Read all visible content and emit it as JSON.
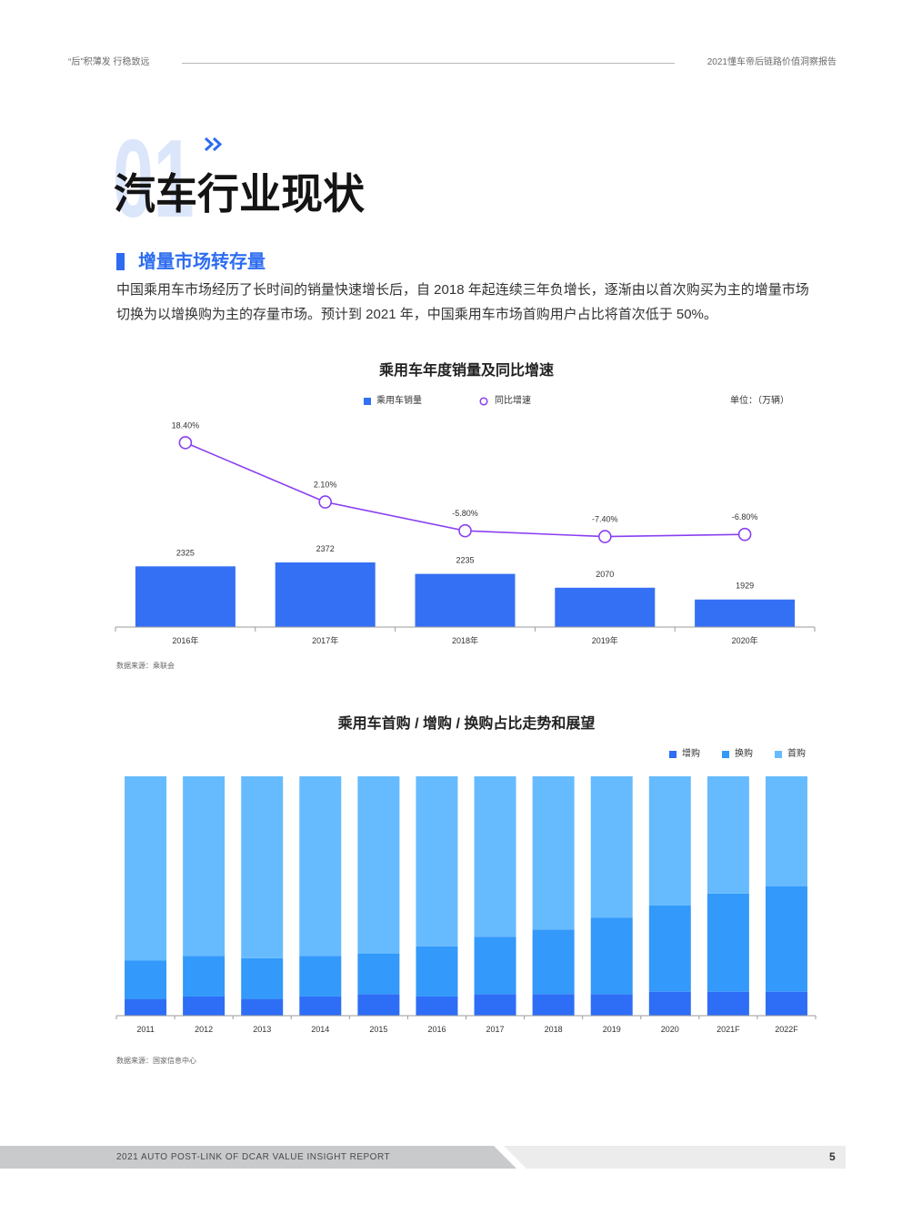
{
  "theme": {
    "accent": "#2d6cf0",
    "number_tint": "#dbe6fb"
  },
  "header": {
    "slogan": "“后”积薄发 行稳致远",
    "report_title": "2021懂车帝后链路价值洞察报告"
  },
  "section": {
    "number": "01",
    "title": "汽车行业现状",
    "subtitle": "增量市场转存量",
    "paragraph_lines": [
      "中国乘用车市场经历了长时间的销量快速增长后，自 2018 年起连续三年负增长，逐渐由以首次购买为主的增量市场",
      "切换为以增换购为主的存量市场。预计到 2021 年，中国乘用车市场首购用户占比将首次低于 50%。"
    ]
  },
  "chart_data": [
    {
      "type": "bar",
      "title": "乘用车年度销量及同比增速",
      "unit_label": "单位：（万辆）",
      "categories": [
        "2016年",
        "2017年",
        "2018年",
        "2019年",
        "2020年"
      ],
      "series": [
        {
          "name": "乘用车销量",
          "type": "bar",
          "values": [
            2325,
            2372,
            2235,
            2070,
            1929
          ],
          "color": "#3470f4"
        },
        {
          "name": "同比增速",
          "type": "line",
          "values": [
            18.4,
            2.1,
            -5.8,
            -7.4,
            -6.8
          ],
          "value_labels": [
            "18.40%",
            "2.10%",
            "-5.80%",
            "-7.40%",
            "-6.80%"
          ],
          "color": "#8a3ff0"
        }
      ],
      "grid": false,
      "legend": "top",
      "source": "数据来源：乘联会"
    },
    {
      "type": "bar",
      "stacked": true,
      "title": "乘用车首购 / 增购 / 换购占比走势和展望",
      "categories": [
        "2011",
        "2012",
        "2013",
        "2014",
        "2015",
        "2016",
        "2017",
        "2018",
        "2019",
        "2020",
        "2021F",
        "2022F"
      ],
      "series": [
        {
          "name": "增购",
          "values": [
            7,
            8,
            7,
            8,
            9,
            8,
            9,
            9,
            9,
            10,
            10,
            10
          ],
          "color": "#2e6df5"
        },
        {
          "name": "换购",
          "values": [
            16,
            17,
            17,
            17,
            17,
            21,
            24,
            27,
            32,
            36,
            41,
            44
          ],
          "color": "#3399fa"
        },
        {
          "name": "首购",
          "values": [
            77,
            75,
            76,
            75,
            74,
            71,
            67,
            64,
            59,
            54,
            49,
            46
          ],
          "color": "#66bbff"
        }
      ],
      "ylim": [
        0,
        100
      ],
      "grid": false,
      "legend": "top-right",
      "source": "数据来源：国家信息中心"
    }
  ],
  "footer": {
    "report_name": "2021 AUTO POST-LINK OF DCAR VALUE INSIGHT REPORT",
    "page_number": "5"
  }
}
